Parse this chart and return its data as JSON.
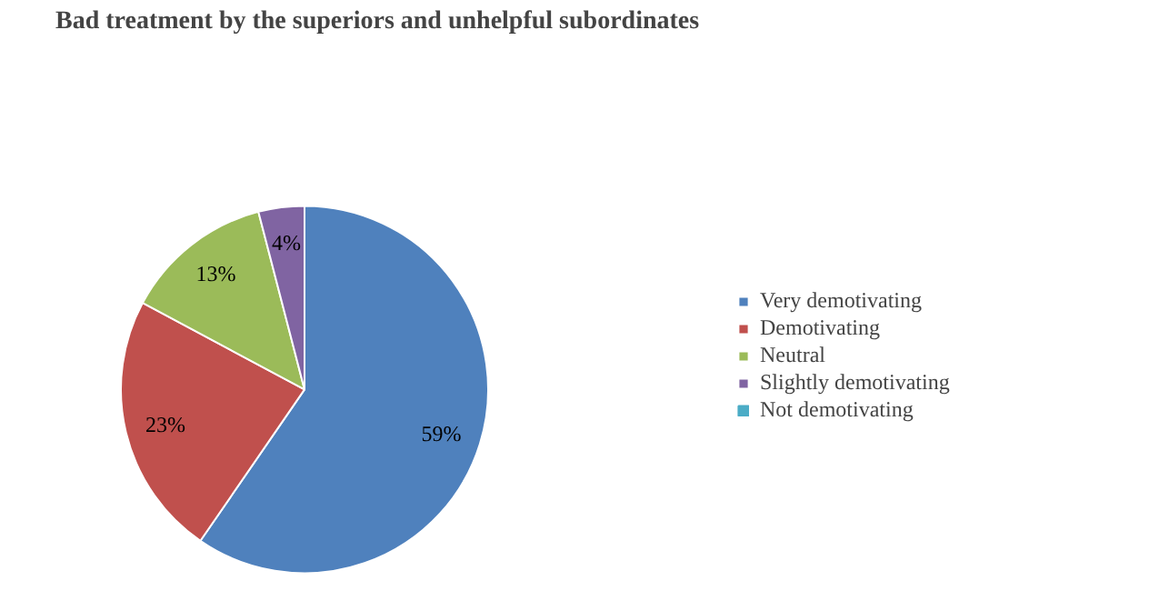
{
  "chart_data": {
    "type": "pie",
    "title": "Bad treatment by the superiors and unhelpful subordinates",
    "categories": [
      "Very demotivating",
      "Demotivating",
      "Neutral",
      "Slightly demotivating",
      "Not demotivating"
    ],
    "values": [
      59,
      23,
      13,
      4,
      0
    ],
    "colors": [
      "#4f81bd",
      "#c0504d",
      "#9bbb59",
      "#8064a2",
      "#4bacc6"
    ],
    "value_labels": [
      "59%",
      "23%",
      "13%",
      "4%",
      null
    ],
    "legend": "right"
  }
}
